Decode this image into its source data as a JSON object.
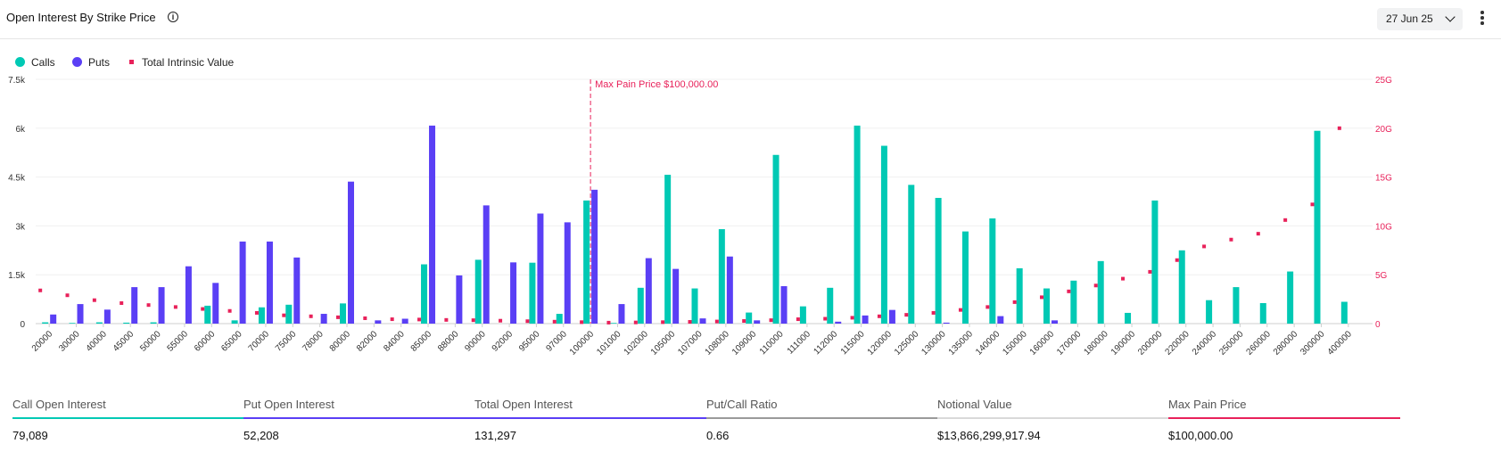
{
  "header": {
    "title": "Open Interest By Strike Price",
    "date_selected": "27 Jun 25"
  },
  "legend": [
    {
      "label": "Calls",
      "color": "#00c9b4",
      "shape": "circle"
    },
    {
      "label": "Puts",
      "color": "#5a3ff5",
      "shape": "circle"
    },
    {
      "label": "Total Intrinsic Value",
      "color": "#e8215a",
      "shape": "square"
    }
  ],
  "chart_data": {
    "type": "bar",
    "categories": [
      "20000",
      "30000",
      "40000",
      "45000",
      "50000",
      "55000",
      "60000",
      "65000",
      "70000",
      "75000",
      "78000",
      "80000",
      "82000",
      "84000",
      "85000",
      "88000",
      "90000",
      "92000",
      "95000",
      "97000",
      "100000",
      "101000",
      "102000",
      "105000",
      "107000",
      "108000",
      "109000",
      "110000",
      "111000",
      "112000",
      "115000",
      "120000",
      "125000",
      "130000",
      "135000",
      "140000",
      "150000",
      "160000",
      "170000",
      "180000",
      "190000",
      "200000",
      "220000",
      "240000",
      "250000",
      "260000",
      "280000",
      "300000",
      "400000"
    ],
    "series": [
      {
        "name": "Calls",
        "axis": "left",
        "color": "#00c9b4",
        "values": [
          40,
          20,
          40,
          30,
          40,
          0,
          550,
          100,
          500,
          580,
          0,
          620,
          0,
          0,
          1820,
          0,
          1960,
          0,
          1870,
          300,
          3780,
          20,
          1100,
          4570,
          1080,
          2900,
          340,
          5180,
          530,
          1100,
          6080,
          5460,
          4260,
          3860,
          2830,
          3230,
          1700,
          1080,
          1320,
          1920,
          330,
          3780,
          2250,
          720,
          1120,
          630,
          1600,
          5920,
          670
        ]
      },
      {
        "name": "Puts",
        "axis": "left",
        "color": "#5a3ff5",
        "values": [
          280,
          600,
          430,
          1120,
          1120,
          1760,
          1250,
          2520,
          2520,
          2030,
          300,
          4360,
          100,
          150,
          6080,
          1480,
          3630,
          1880,
          3380,
          3110,
          4110,
          600,
          2010,
          1680,
          160,
          2060,
          100,
          1150,
          0,
          60,
          250,
          420,
          0,
          30,
          0,
          230,
          0,
          100,
          0,
          0,
          0,
          0,
          0,
          0,
          0,
          0,
          0,
          0,
          0
        ]
      },
      {
        "name": "Total Intrinsic Value",
        "axis": "right",
        "color": "#e8215a",
        "type": "scatter",
        "values": [
          3.4,
          2.9,
          2.4,
          2.1,
          1.9,
          1.7,
          1.5,
          1.3,
          1.1,
          0.85,
          0.75,
          0.65,
          0.55,
          0.45,
          0.42,
          0.38,
          0.35,
          0.3,
          0.25,
          0.2,
          0.15,
          0.1,
          0.12,
          0.15,
          0.18,
          0.22,
          0.27,
          0.35,
          0.45,
          0.5,
          0.6,
          0.75,
          0.9,
          1.1,
          1.4,
          1.7,
          2.2,
          2.7,
          3.3,
          3.9,
          4.6,
          5.3,
          6.5,
          7.9,
          8.6,
          9.2,
          10.6,
          12.2,
          20.0
        ]
      }
    ],
    "y_left": {
      "min": 0,
      "max": 7500,
      "ticks": [
        0,
        1500,
        3000,
        4500,
        6000,
        7500
      ],
      "tick_labels": [
        "0",
        "1.5k",
        "3k",
        "4.5k",
        "6k",
        "7.5k"
      ]
    },
    "y_right": {
      "min": 0,
      "max": 25,
      "ticks": [
        0,
        5,
        10,
        15,
        20,
        25
      ],
      "tick_labels": [
        "0",
        "5G",
        "10G",
        "15G",
        "20G",
        "25G"
      ]
    },
    "annotation": {
      "label": "Max Pain Price $100,000.00",
      "x_category": "100000",
      "color": "#e8215a"
    },
    "grid": true,
    "legend_position": "top-left"
  },
  "stats": [
    {
      "label": "Call Open Interest",
      "value": "79,089",
      "color": "#00c9b4"
    },
    {
      "label": "Put Open Interest",
      "value": "52,208",
      "color": "#5a3ff5"
    },
    {
      "label": "Total Open Interest",
      "value": "131,297",
      "color": "#5a3ff5"
    },
    {
      "label": "Put/Call Ratio",
      "value": "0.66",
      "color": "#9a9a9a"
    },
    {
      "label": "Notional Value",
      "value": "$13,866,299,917.94",
      "color": "#d9d9d9"
    },
    {
      "label": "Max Pain Price",
      "value": "$100,000.00",
      "color": "#e8215a"
    }
  ]
}
